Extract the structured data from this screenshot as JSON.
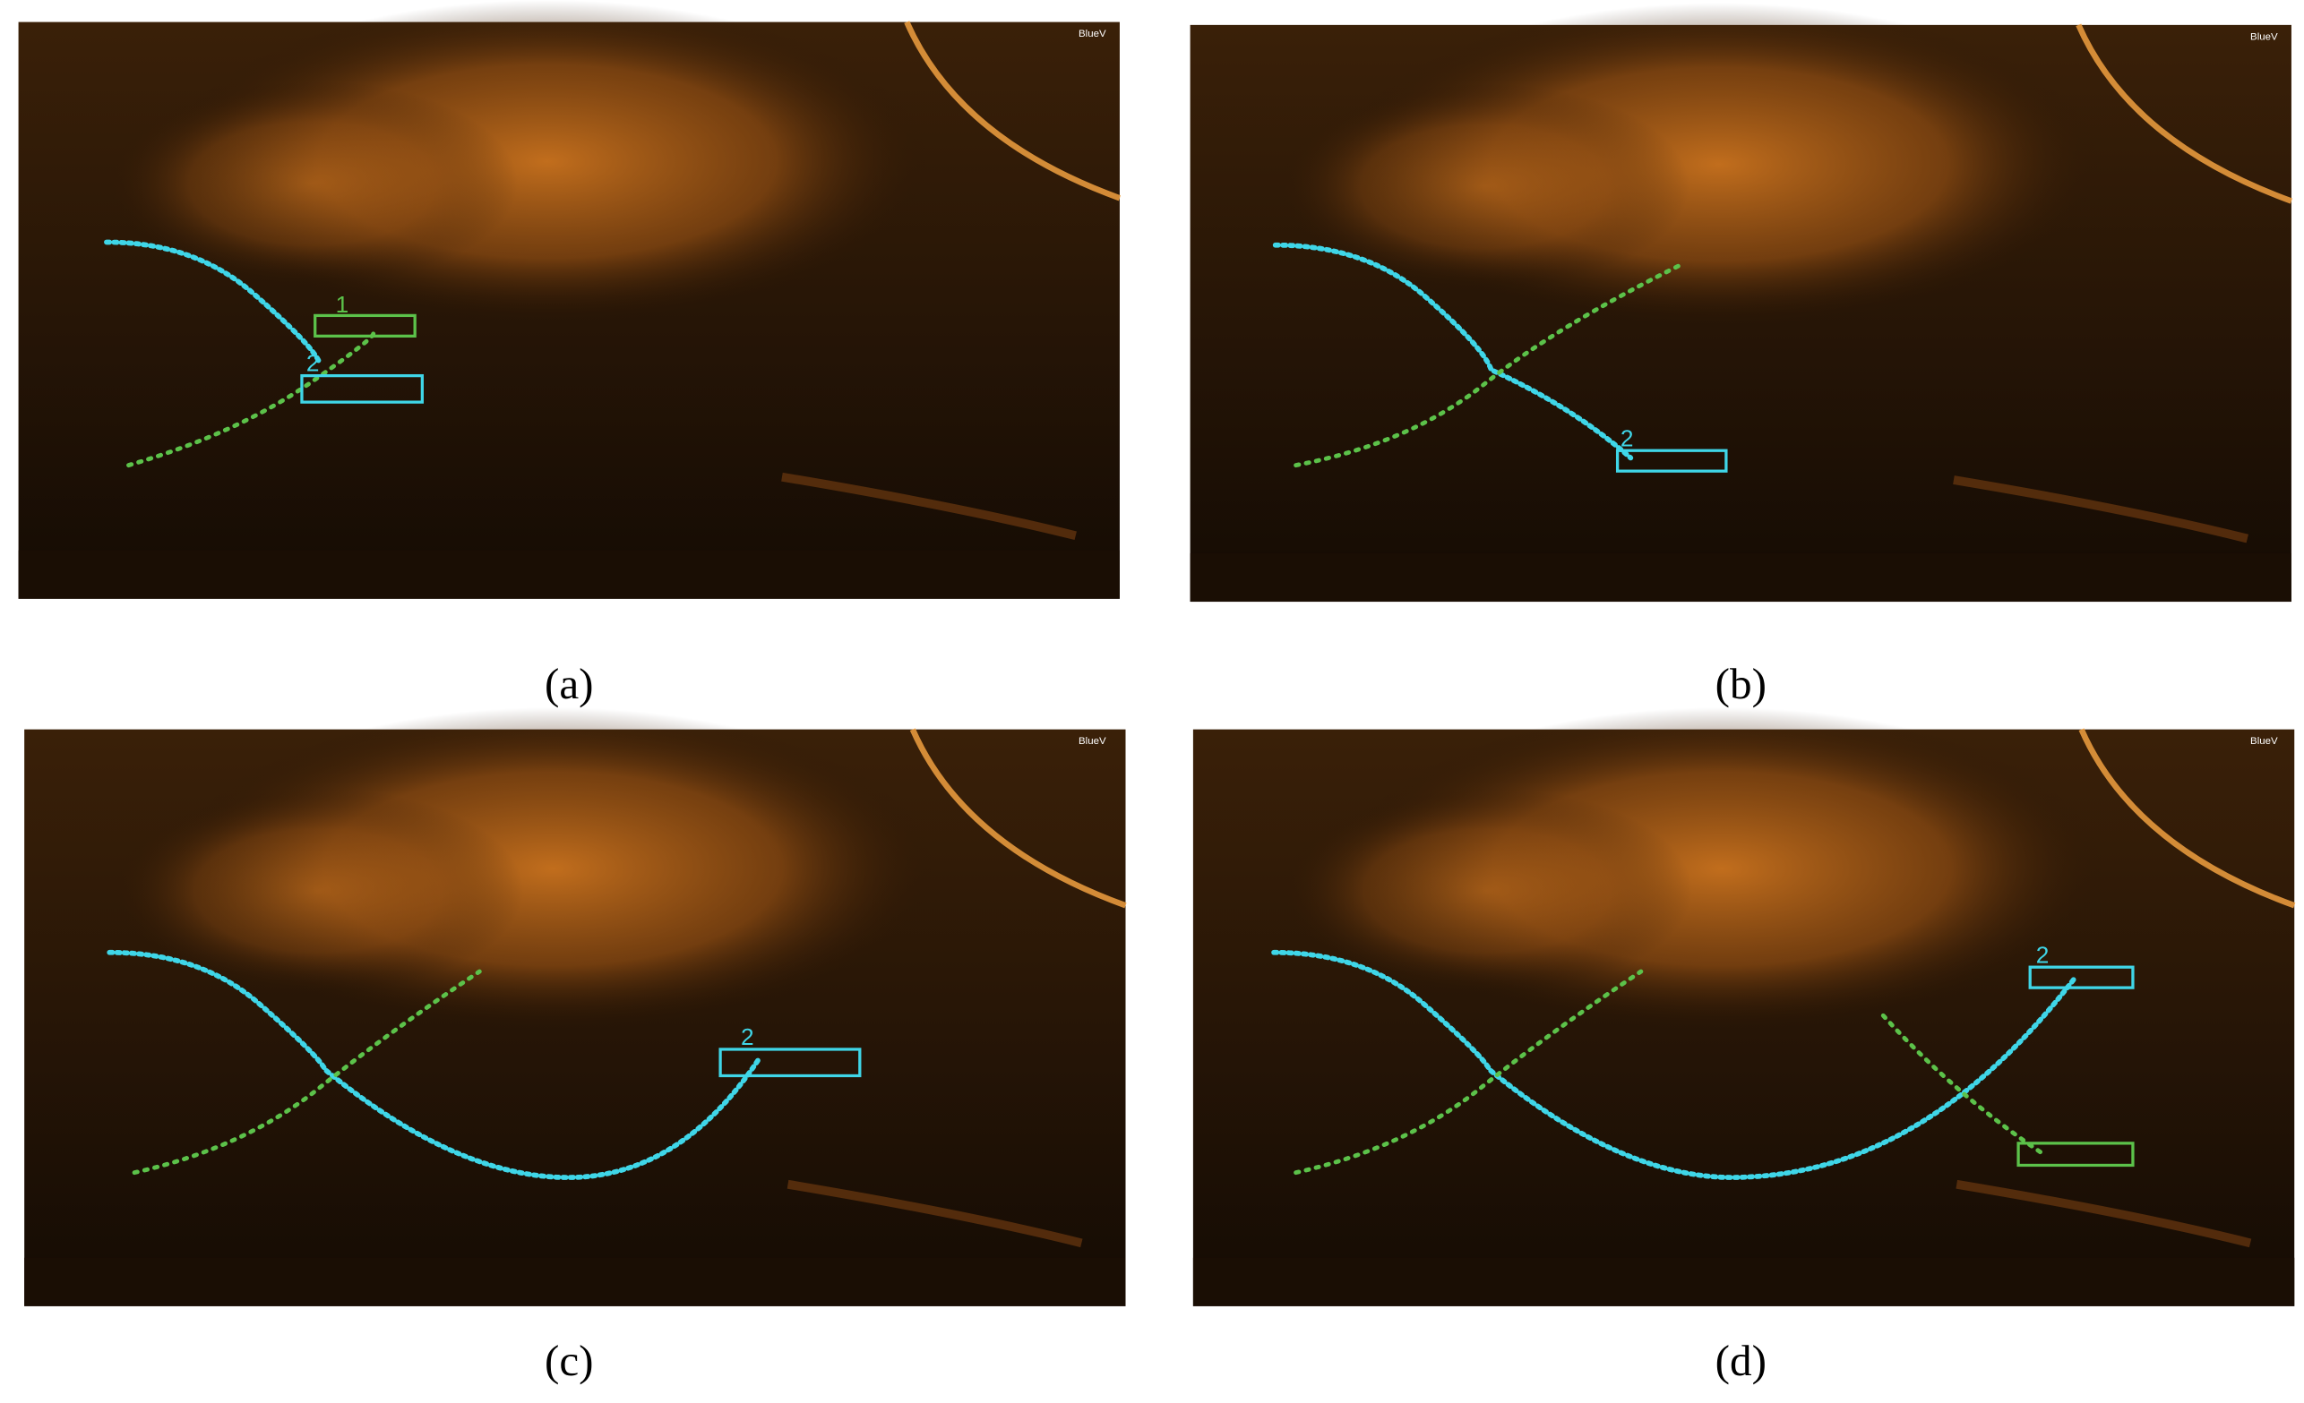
{
  "panels": [
    {
      "caption": "(a)",
      "logo": "BlueV",
      "box_labels": [
        "1",
        "2"
      ]
    },
    {
      "caption": "(b)",
      "logo": "BlueV",
      "box_labels": [
        "2"
      ]
    },
    {
      "caption": "(c)",
      "logo": "BlueV",
      "box_labels": [
        "2"
      ]
    },
    {
      "caption": "(d)",
      "logo": "BlueV",
      "box_labels": [
        "2"
      ]
    }
  ]
}
